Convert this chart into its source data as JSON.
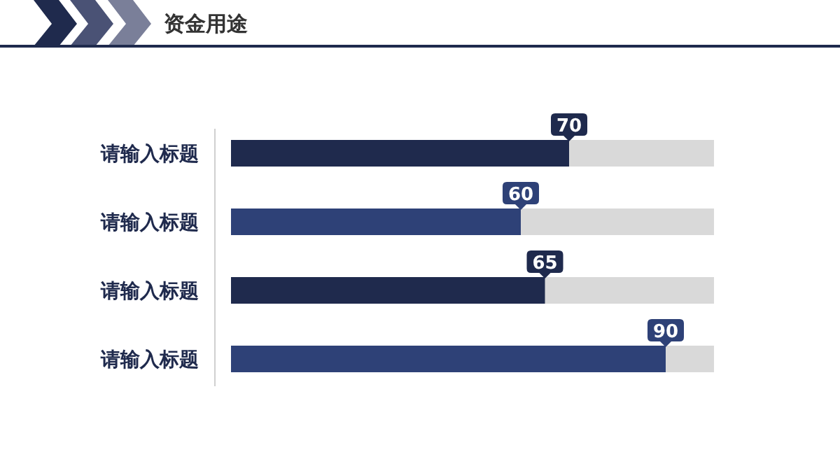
{
  "chart_data": {
    "type": "bar",
    "orientation": "horizontal",
    "title": "资金用途",
    "categories": [
      "请输入标题",
      "请输入标题",
      "请输入标题",
      "请输入标题"
    ],
    "values": [
      70,
      60,
      65,
      90
    ],
    "colors": [
      "#1f2a4d",
      "#2e4177",
      "#1f2a4d",
      "#2e4177"
    ],
    "tick_labels": "y",
    "data_labels": true
  }
}
